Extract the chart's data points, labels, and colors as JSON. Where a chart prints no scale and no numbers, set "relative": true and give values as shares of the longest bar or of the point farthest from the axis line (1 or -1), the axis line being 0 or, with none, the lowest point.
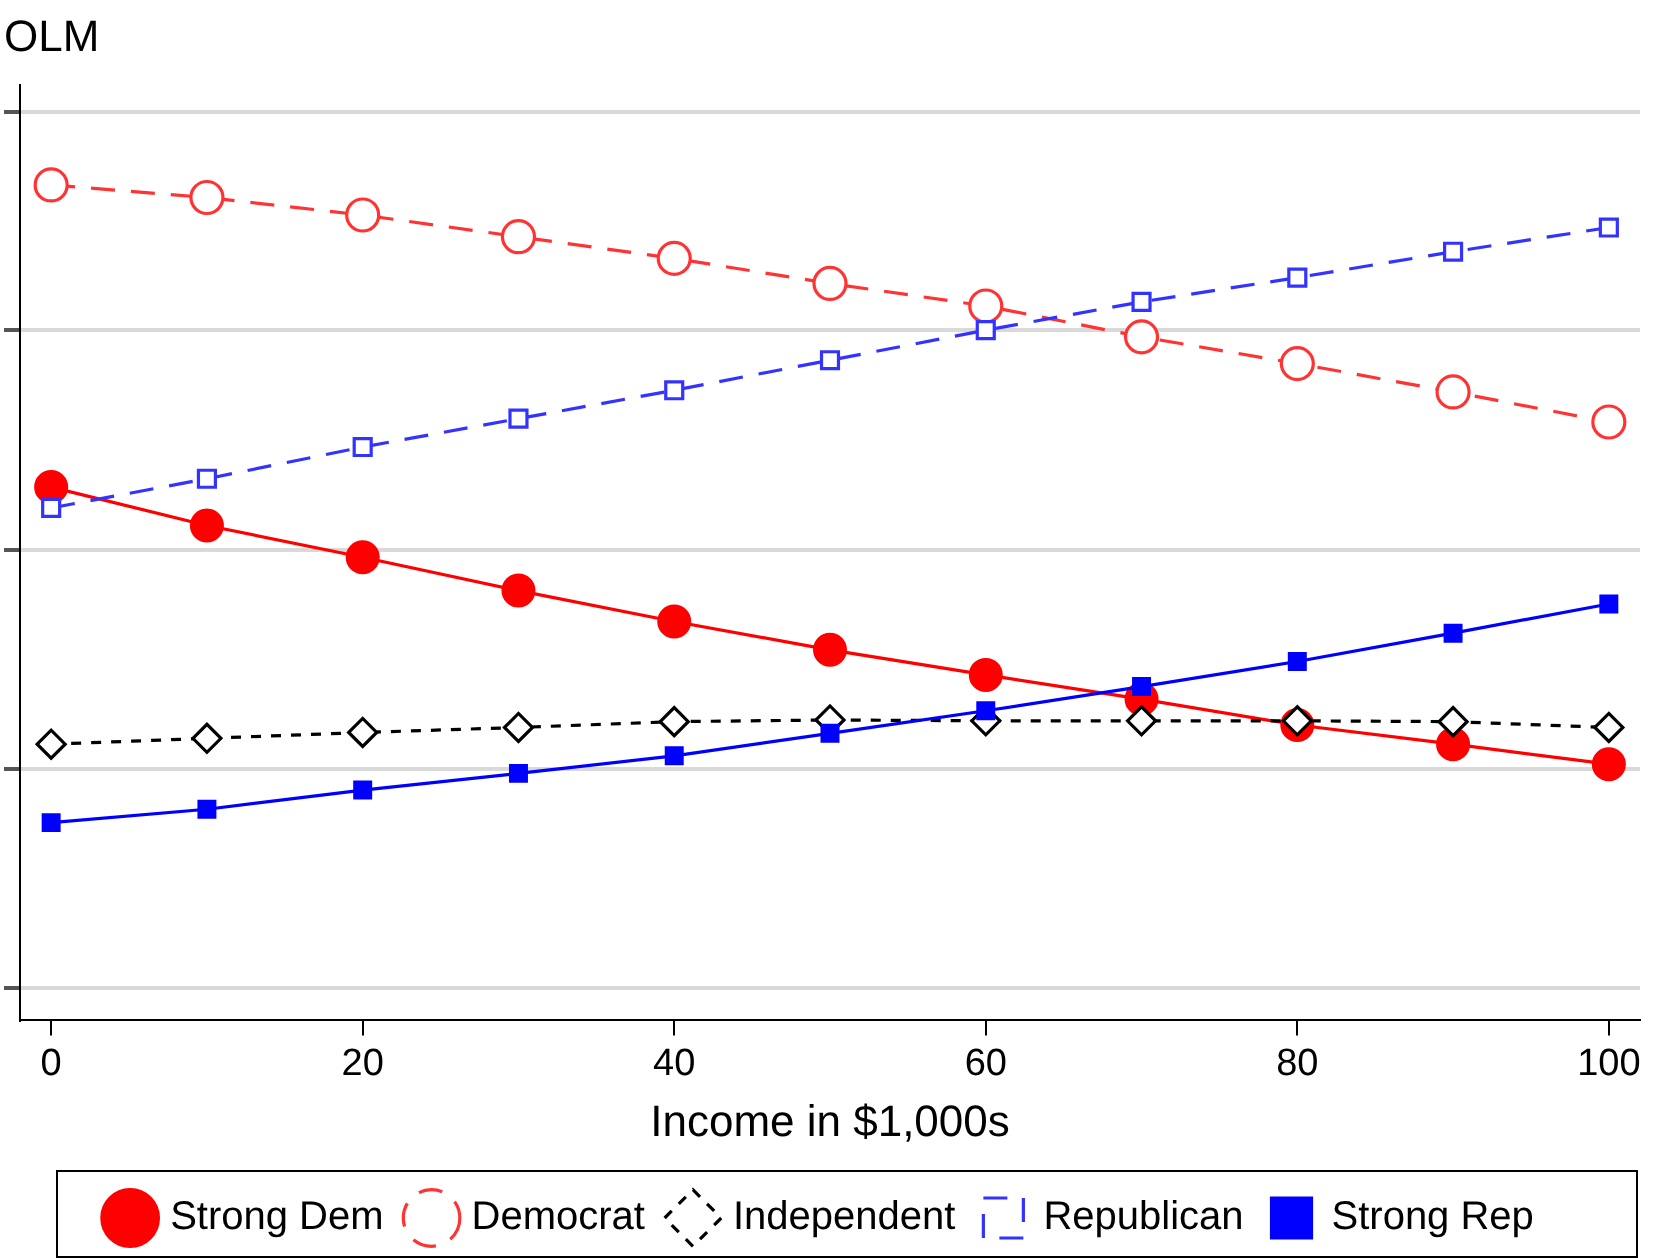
{
  "chart_data": {
    "type": "line",
    "title": "OLM",
    "xlabel": "Income in $1,000s",
    "relative": true,
    "x": [
      0,
      10,
      20,
      30,
      40,
      50,
      60,
      70,
      80,
      90,
      100
    ],
    "xlim": [
      -2,
      102
    ],
    "xticks": [
      0,
      20,
      40,
      60,
      80,
      100
    ],
    "grid": "y",
    "legend": "bottom",
    "series": [
      {
        "name": "Strong Dem",
        "color": "#ff0000",
        "marker": "circle",
        "line_style": "solid",
        "values": [
          0.638,
          0.592,
          0.554,
          0.514,
          0.477,
          0.443,
          0.413,
          0.384,
          0.353,
          0.33,
          0.306
        ]
      },
      {
        "name": "Democrat",
        "color": "#ff3333",
        "marker": "circle",
        "line_style": "dashed",
        "values": [
          1,
          0.985,
          0.964,
          0.938,
          0.912,
          0.882,
          0.855,
          0.818,
          0.786,
          0.752,
          0.716
        ]
      },
      {
        "name": "Independent",
        "color": "#000000",
        "marker": "diamond",
        "line_style": "dotted",
        "values": [
          0.33,
          0.337,
          0.344,
          0.35,
          0.357,
          0.359,
          0.358,
          0.358,
          0.358,
          0.357,
          0.35
        ]
      },
      {
        "name": "Republican",
        "color": "#3333ff",
        "marker": "square",
        "line_style": "dashed",
        "values": [
          0.613,
          0.648,
          0.686,
          0.72,
          0.754,
          0.79,
          0.826,
          0.86,
          0.889,
          0.92,
          0.949
        ]
      },
      {
        "name": "Strong Rep",
        "color": "#0000ff",
        "marker": "square",
        "line_style": "solid",
        "values": [
          0.236,
          0.252,
          0.275,
          0.295,
          0.316,
          0.343,
          0.37,
          0.399,
          0.429,
          0.463,
          0.498
        ]
      }
    ]
  }
}
